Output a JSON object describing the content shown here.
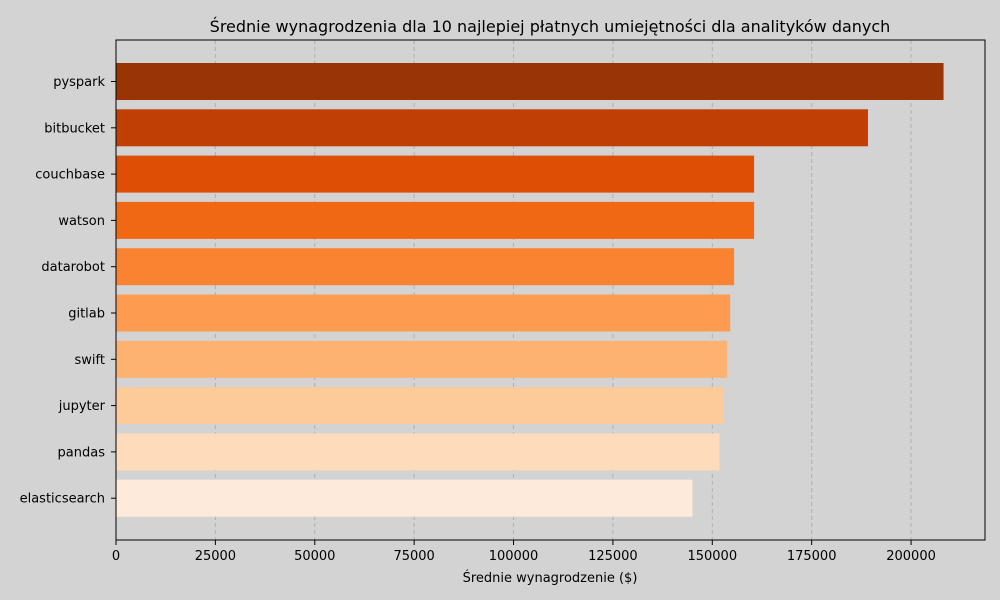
{
  "chart_data": {
    "type": "bar",
    "orientation": "horizontal",
    "title": "Średnie wynagrodzenia dla 10 najlepiej płatnych umiejętności dla analityków danych",
    "xlabel": "Średnie wynagrodzenie ($)",
    "ylabel": "",
    "categories": [
      "pyspark",
      "bitbucket",
      "couchbase",
      "watson",
      "datarobot",
      "gitlab",
      "swift",
      "jupyter",
      "pandas",
      "elasticsearch"
    ],
    "values": [
      208172,
      189155,
      160515,
      160515,
      155486,
      154500,
      153750,
      152777,
      151821,
      145000
    ],
    "xlim": [
      0,
      218600
    ],
    "xticks": [
      0,
      25000,
      50000,
      75000,
      100000,
      125000,
      150000,
      175000,
      200000
    ],
    "xtick_labels": [
      "0",
      "25000",
      "50000",
      "75000",
      "100000",
      "125000",
      "150000",
      "175000",
      "200000"
    ],
    "grid": "x-axis dashed",
    "colors": [
      "#993404",
      "#bf3f04",
      "#df4e05",
      "#f06814",
      "#fa8331",
      "#fd9c51",
      "#fdb271",
      "#fdca99",
      "#fedcbb",
      "#feeadb"
    ]
  }
}
